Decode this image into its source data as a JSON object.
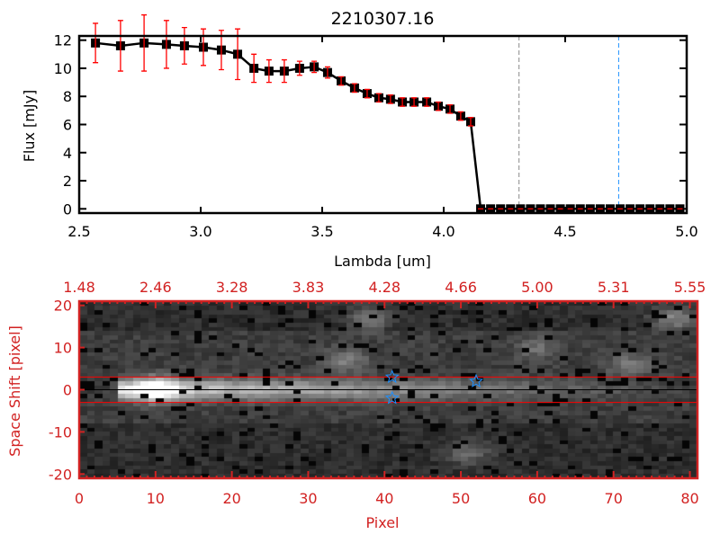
{
  "chart_data": [
    {
      "type": "line",
      "title": "2210307.16",
      "xlabel": "Lambda [um]",
      "ylabel": "Flux [mJy]",
      "xlim": [
        2.5,
        5.0
      ],
      "ylim": [
        -0.3,
        12.3
      ],
      "xticks": [
        "2.5",
        "3.0",
        "3.5",
        "4.0",
        "4.5",
        "5.0"
      ],
      "yticks": [
        "0",
        "2",
        "4",
        "6",
        "8",
        "10",
        "12"
      ],
      "series": [
        {
          "name": "flux",
          "x": [
            2.567,
            2.67,
            2.767,
            2.859,
            2.933,
            3.011,
            3.085,
            3.152,
            3.219,
            3.281,
            3.344,
            3.407,
            3.467,
            3.522,
            3.578,
            3.633,
            3.685,
            3.733,
            3.781,
            3.83,
            3.878,
            3.93,
            3.978,
            4.026,
            4.07,
            4.111,
            4.152,
            4.193,
            4.234,
            4.275,
            4.316,
            4.357,
            4.398,
            4.439,
            4.48,
            4.521,
            4.562,
            4.603,
            4.644,
            4.685,
            4.726,
            4.767,
            4.808,
            4.849,
            4.89,
            4.931,
            4.972
          ],
          "y": [
            11.8,
            11.6,
            11.8,
            11.7,
            11.6,
            11.5,
            11.3,
            11.0,
            10.0,
            9.8,
            9.8,
            10.0,
            10.1,
            9.7,
            9.1,
            8.6,
            8.2,
            7.9,
            7.8,
            7.6,
            7.6,
            7.6,
            7.3,
            7.1,
            6.6,
            6.2,
            0,
            0,
            0,
            0,
            0,
            0,
            0,
            0,
            0,
            0,
            0,
            0,
            0,
            0,
            0,
            0,
            0,
            0,
            0,
            0,
            0
          ],
          "err": [
            1.4,
            1.8,
            2.0,
            1.7,
            1.3,
            1.3,
            1.4,
            1.8,
            1.0,
            0.8,
            0.8,
            0.5,
            0.4,
            0.4,
            0.3,
            0.3,
            0.3,
            0.3,
            0.3,
            0.3,
            0.3,
            0.3,
            0.3,
            0.3,
            0.3,
            0.3,
            0,
            0,
            0,
            0,
            0,
            0,
            0,
            0,
            0,
            0,
            0,
            0,
            0,
            0,
            0,
            0,
            0,
            0,
            0,
            0,
            0
          ]
        }
      ],
      "vlines": [
        {
          "x": 4.31,
          "color": "#888888"
        },
        {
          "x": 4.72,
          "color": "#1e90ff"
        }
      ],
      "colors": {
        "line": "#000000",
        "error": "#ff0000"
      }
    },
    {
      "type": "heatmap",
      "xlabel": "Pixel",
      "ylabel": "Space Shift [pixel]",
      "xlim": [
        0,
        81
      ],
      "ylim": [
        -21,
        21
      ],
      "xticks": [
        "0",
        "10",
        "20",
        "30",
        "40",
        "50",
        "60",
        "70",
        "80"
      ],
      "yticks": [
        "-20",
        "-10",
        "0",
        "10",
        "20"
      ],
      "top_xticks": [
        "1.48",
        "2.46",
        "3.28",
        "3.83",
        "4.28",
        "4.66",
        "5.00",
        "5.31",
        "5.55"
      ],
      "hlines": [
        {
          "y": 3,
          "color": "#ff0000"
        },
        {
          "y": 0,
          "color": "#000000"
        },
        {
          "y": -3,
          "color": "#ff0000"
        }
      ],
      "markers": [
        {
          "x": 41,
          "y": 3
        },
        {
          "x": 52,
          "y": 2
        },
        {
          "x": 41,
          "y": -2
        }
      ],
      "sources": [
        {
          "x": 10,
          "y": 0,
          "amp": 1.0
        },
        {
          "x": 38,
          "y": 17,
          "amp": 0.5
        },
        {
          "x": 35,
          "y": 7,
          "amp": 0.45
        },
        {
          "x": 78,
          "y": 17,
          "amp": 0.6
        },
        {
          "x": 72,
          "y": 6,
          "amp": 0.4
        },
        {
          "x": 60,
          "y": 10,
          "amp": 0.35
        },
        {
          "x": 51,
          "y": -15,
          "amp": 0.45
        }
      ],
      "colors": {
        "axis": "#d22222",
        "marker": "#1e90ff"
      }
    }
  ]
}
